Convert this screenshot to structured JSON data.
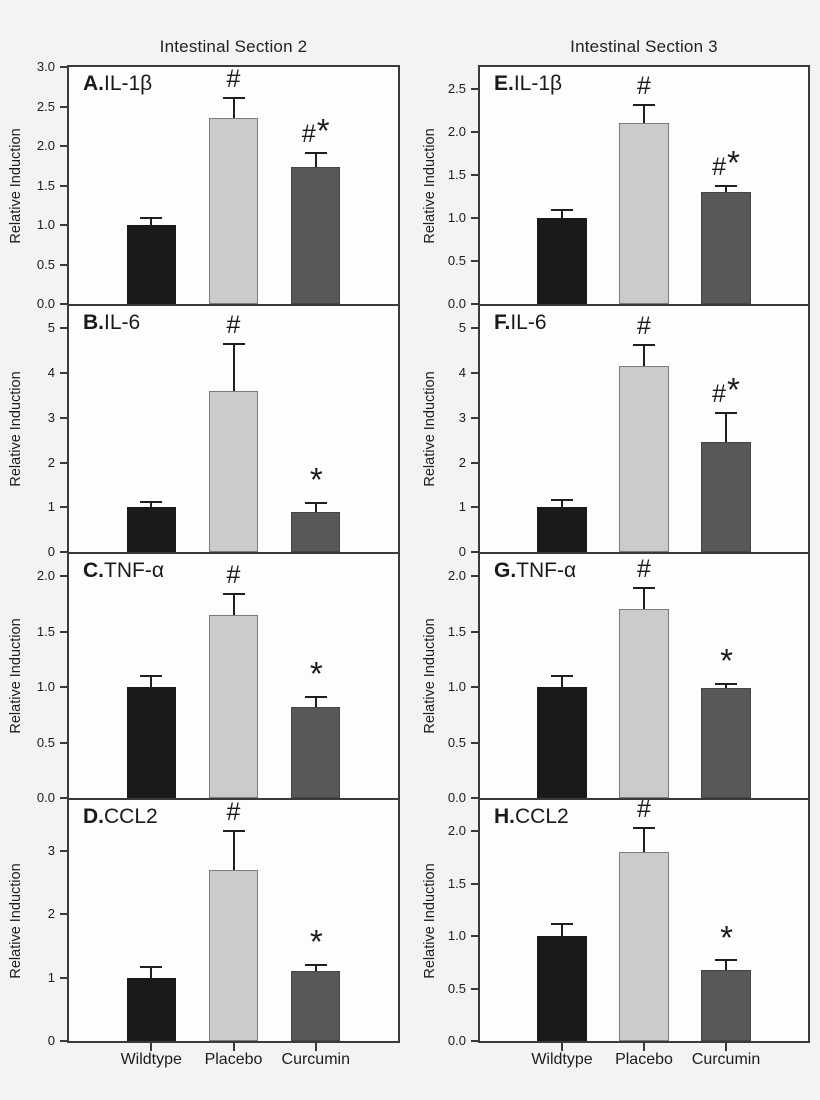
{
  "figure": {
    "column_titles": [
      "Intestinal Section 2",
      "Intestinal Section 3"
    ],
    "ylabel": "Relative Induction",
    "categories": [
      "Wildtype",
      "Placebo",
      "Curcumin"
    ],
    "colors": {
      "background": "#f4f3f1",
      "panel_background": "#fdfdfc",
      "axis": "#3a3a3a",
      "bar_wildtype": "#1a1a19",
      "bar_placebo": "#cccbc9",
      "bar_placebo_border": "#7c7c7c",
      "bar_curcumin": "#58575a",
      "bar_curcumin_border": "#454548",
      "error_bar": "#1f1f1f"
    }
  },
  "chart_data": [
    {
      "type": "bar",
      "panel_letter": "A.",
      "gene": "IL-1β",
      "column": "Intestinal Section 2",
      "ylabel": "Relative Induction",
      "categories": [
        "Wildtype",
        "Placebo",
        "Curcumin"
      ],
      "values": [
        1.0,
        2.36,
        1.74
      ],
      "errors": [
        0.1,
        0.26,
        0.18
      ],
      "significance": [
        "",
        "#",
        "#*"
      ],
      "yticks": [
        "3.0",
        "2.5",
        "2.0",
        "1.5",
        "1.0",
        "0.5",
        "0.0"
      ],
      "ylim": [
        0,
        3.0
      ],
      "grid": false,
      "legend": "none"
    },
    {
      "type": "bar",
      "panel_letter": "B.",
      "gene": "IL-6",
      "column": "Intestinal Section 2",
      "ylabel": "Relative Induction",
      "categories": [
        "Wildtype",
        "Placebo",
        "Curcumin"
      ],
      "values": [
        1.0,
        3.6,
        0.9
      ],
      "errors": [
        0.15,
        1.08,
        0.22
      ],
      "significance": [
        "",
        "#",
        "*"
      ],
      "yticks": [
        "5",
        "4",
        "3",
        "2",
        "1",
        "0"
      ],
      "ylim": [
        0,
        5.5
      ],
      "grid": false,
      "legend": "none"
    },
    {
      "type": "bar",
      "panel_letter": "C.",
      "gene": "TNF-α",
      "column": "Intestinal Section 2",
      "ylabel": "Relative Induction",
      "categories": [
        "Wildtype",
        "Placebo",
        "Curcumin"
      ],
      "values": [
        1.0,
        1.65,
        0.82
      ],
      "errors": [
        0.11,
        0.2,
        0.1
      ],
      "significance": [
        "",
        "#",
        "*"
      ],
      "yticks": [
        "2.0",
        "1.5",
        "1.0",
        "0.5",
        "0.0"
      ],
      "ylim": [
        0,
        2.2
      ],
      "grid": false,
      "legend": "none"
    },
    {
      "type": "bar",
      "panel_letter": "D.",
      "gene": "CCL2",
      "column": "Intestinal Section 2",
      "ylabel": "Relative Induction",
      "categories": [
        "Wildtype",
        "Placebo",
        "Curcumin"
      ],
      "values": [
        1.0,
        2.7,
        1.1
      ],
      "errors": [
        0.18,
        0.63,
        0.12
      ],
      "significance": [
        "",
        "#",
        "*"
      ],
      "yticks": [
        "3",
        "2",
        "1",
        "0"
      ],
      "ylim": [
        0,
        3.8
      ],
      "grid": false,
      "legend": "none"
    },
    {
      "type": "bar",
      "panel_letter": "E.",
      "gene": "IL-1β",
      "column": "Intestinal Section 3",
      "ylabel": "Relative Induction",
      "categories": [
        "Wildtype",
        "Placebo",
        "Curcumin"
      ],
      "values": [
        1.0,
        2.1,
        1.3
      ],
      "errors": [
        0.1,
        0.22,
        0.08
      ],
      "significance": [
        "",
        "#",
        "#*"
      ],
      "yticks": [
        "2.5",
        "2.0",
        "1.5",
        "1.0",
        "0.5",
        "0.0"
      ],
      "ylim": [
        0,
        2.75
      ],
      "grid": false,
      "legend": "none"
    },
    {
      "type": "bar",
      "panel_letter": "F.",
      "gene": "IL-6",
      "column": "Intestinal Section 3",
      "ylabel": "Relative Induction",
      "categories": [
        "Wildtype",
        "Placebo",
        "Curcumin"
      ],
      "values": [
        1.0,
        4.15,
        2.45
      ],
      "errors": [
        0.18,
        0.5,
        0.68
      ],
      "significance": [
        "",
        "#",
        "#*"
      ],
      "yticks": [
        "5",
        "4",
        "3",
        "2",
        "1",
        "0"
      ],
      "ylim": [
        0,
        5.5
      ],
      "grid": false,
      "legend": "none"
    },
    {
      "type": "bar",
      "panel_letter": "G.",
      "gene": "TNF-α",
      "column": "Intestinal Section 3",
      "ylabel": "Relative Induction",
      "categories": [
        "Wildtype",
        "Placebo",
        "Curcumin"
      ],
      "values": [
        1.0,
        1.7,
        0.99
      ],
      "errors": [
        0.11,
        0.2,
        0.05
      ],
      "significance": [
        "",
        "#",
        "*"
      ],
      "yticks": [
        "2.0",
        "1.5",
        "1.0",
        "0.5",
        "0.0"
      ],
      "ylim": [
        0,
        2.2
      ],
      "grid": false,
      "legend": "none"
    },
    {
      "type": "bar",
      "panel_letter": "H.",
      "gene": "CCL2",
      "column": "Intestinal Section 3",
      "ylabel": "Relative Induction",
      "categories": [
        "Wildtype",
        "Placebo",
        "Curcumin"
      ],
      "values": [
        1.0,
        1.8,
        0.68
      ],
      "errors": [
        0.13,
        0.24,
        0.1
      ],
      "significance": [
        "",
        "#",
        "*"
      ],
      "yticks": [
        "2.0",
        "1.5",
        "1.0",
        "0.5",
        "0.0"
      ],
      "ylim": [
        0,
        2.3
      ],
      "grid": false,
      "legend": "none"
    }
  ]
}
